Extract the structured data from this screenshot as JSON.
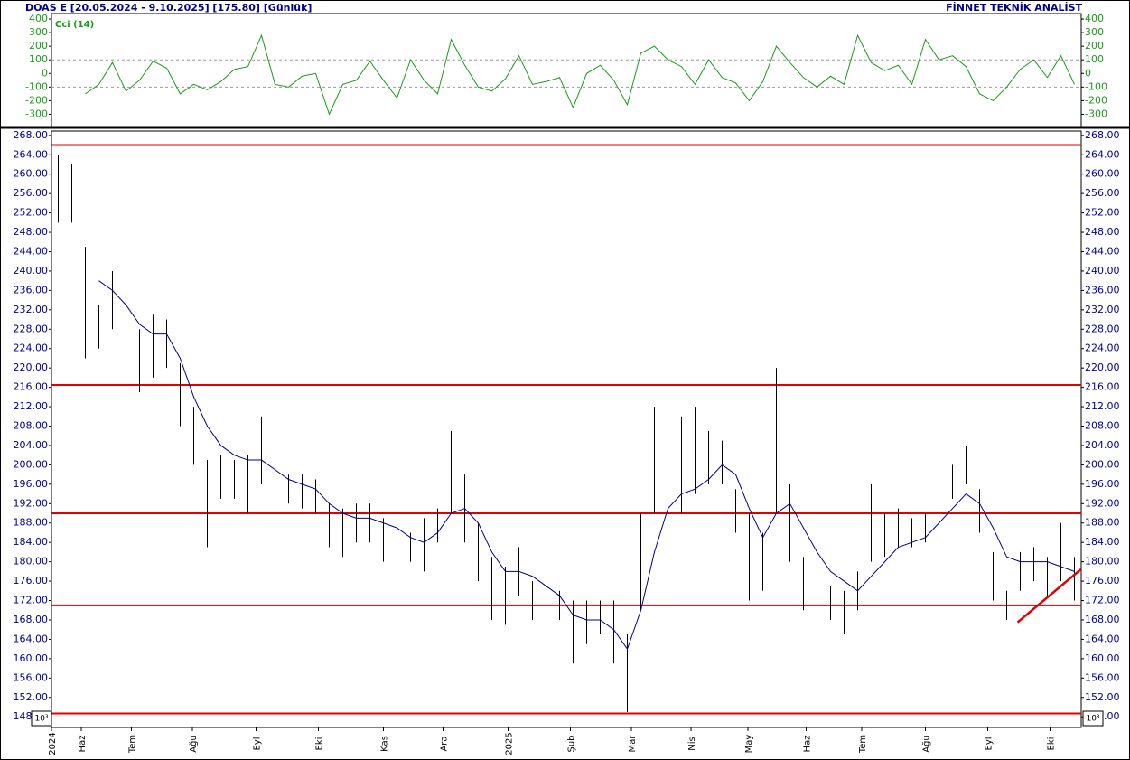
{
  "chart_data": [
    {
      "type": "line",
      "title": "DOAS  E  [20.05.2024 - 9.10.2025]  [175.80]  [Günlük]",
      "brand": "FİNNET TEKNİK ANALİST",
      "series": [
        {
          "name": "Cci (14)",
          "color": "#1a9a1a",
          "values": [
            null,
            null,
            -150,
            -80,
            80,
            -130,
            -50,
            90,
            40,
            -150,
            -80,
            -120,
            -60,
            30,
            50,
            280,
            -80,
            -100,
            -20,
            0,
            -300,
            -80,
            -50,
            90,
            -50,
            -180,
            100,
            -50,
            -150,
            250,
            60,
            -100,
            -130,
            -40,
            130,
            -80,
            -60,
            -30,
            -250,
            0,
            60,
            -50,
            -230,
            150,
            200,
            100,
            50,
            -80,
            100,
            -30,
            -70,
            -200,
            -60,
            200,
            80,
            -30,
            -100,
            -20,
            -80,
            280,
            80,
            20,
            60,
            -80,
            250,
            100,
            130,
            50,
            -150,
            -200,
            -100,
            30,
            100,
            -30,
            130,
            -80
          ]
        }
      ],
      "ylim": [
        -390,
        440
      ],
      "yticks": [
        400,
        300,
        200,
        100,
        0,
        -100,
        -200,
        -300
      ],
      "ref_lines": [
        100,
        -100
      ],
      "xlim": [
        0,
        76
      ]
    },
    {
      "type": "hlc",
      "color": "#000000",
      "high": [
        264,
        262,
        245,
        233,
        240,
        238,
        228,
        231,
        230,
        221,
        212,
        201,
        202,
        201,
        202,
        210,
        199,
        198,
        198,
        197,
        192,
        191,
        192,
        192,
        189,
        188,
        186,
        189,
        191,
        207,
        198,
        188,
        181,
        179,
        183,
        176,
        176,
        174,
        172,
        172,
        172,
        172,
        165,
        190,
        212,
        216,
        210,
        212,
        207,
        205,
        195,
        190,
        186,
        220,
        196,
        181,
        183,
        175,
        174,
        178,
        196,
        190,
        191,
        189,
        190,
        198,
        200,
        204,
        195,
        182,
        174,
        182,
        183,
        181,
        188,
        181
      ],
      "low": [
        250,
        250,
        222,
        224,
        228,
        222,
        215,
        218,
        220,
        208,
        200,
        183,
        193,
        193,
        190,
        196,
        190,
        192,
        191,
        190,
        183,
        181,
        184,
        184,
        180,
        182,
        180,
        178,
        184,
        190,
        184,
        176,
        168,
        167,
        173,
        168,
        169,
        168,
        159,
        163,
        165,
        159,
        149,
        170,
        190,
        198,
        190,
        194,
        196,
        196,
        186,
        172,
        174,
        190,
        180,
        170,
        174,
        168,
        165,
        170,
        180,
        181,
        183,
        183,
        184,
        189,
        193,
        196,
        186,
        172,
        168,
        174,
        176,
        173,
        176,
        172
      ],
      "overlays": [
        {
          "color": "#00008b",
          "values": [
            null,
            null,
            null,
            238,
            236,
            233,
            229,
            227,
            227,
            222,
            214,
            208,
            204,
            202,
            201,
            201,
            199,
            197,
            196,
            195,
            192,
            190,
            189,
            189,
            188,
            187,
            185,
            184,
            186,
            190,
            191,
            188,
            182,
            178,
            178,
            177,
            175,
            173,
            169,
            168,
            168,
            166,
            162,
            170,
            182,
            191,
            194,
            195,
            197,
            200,
            198,
            191,
            185,
            190,
            192,
            187,
            182,
            178,
            176,
            174,
            177,
            180,
            183,
            184,
            185,
            188,
            191,
            194,
            192,
            187,
            181,
            180,
            180,
            180,
            179,
            178
          ]
        }
      ],
      "levels": [
        266,
        216.5,
        190,
        171,
        148.7
      ],
      "level_color": "#e00000",
      "trend": {
        "x": [
          71.3,
          76
        ],
        "y": [
          167.5,
          178.5
        ],
        "color": "#e00000"
      },
      "scale_label": "10³",
      "ylim": [
        145.8,
        268.9
      ],
      "yticks": [
        {
          "value": 268,
          "label": "268.00"
        },
        {
          "value": 264,
          "label": "264.00"
        },
        {
          "value": 260,
          "label": "260.00"
        },
        {
          "value": 256,
          "label": "256.00"
        },
        {
          "value": 252,
          "label": "252.00"
        },
        {
          "value": 248,
          "label": "248.00"
        },
        {
          "value": 244,
          "label": "244.00"
        },
        {
          "value": 240,
          "label": "240.00"
        },
        {
          "value": 236,
          "label": "236.00"
        },
        {
          "value": 232,
          "label": "232.00"
        },
        {
          "value": 228,
          "label": "228.00"
        },
        {
          "value": 224,
          "label": "224.00"
        },
        {
          "value": 220,
          "label": "220.00"
        },
        {
          "value": 216,
          "label": "216.00"
        },
        {
          "value": 212,
          "label": "212.00"
        },
        {
          "value": 208,
          "label": "208.00"
        },
        {
          "value": 204,
          "label": "204.00"
        },
        {
          "value": 200,
          "label": "200.00"
        },
        {
          "value": 196,
          "label": "196.00"
        },
        {
          "value": 192,
          "label": "192.00"
        },
        {
          "value": 188,
          "label": "188.00"
        },
        {
          "value": 184,
          "label": "184.00"
        },
        {
          "value": 180,
          "label": "180.00"
        },
        {
          "value": 176,
          "label": "176.00"
        },
        {
          "value": 172,
          "label": "172.00"
        },
        {
          "value": 168,
          "label": "168.00"
        },
        {
          "value": 164,
          "label": "164.00"
        },
        {
          "value": 160,
          "label": "160.00"
        },
        {
          "value": 156,
          "label": "156.00"
        },
        {
          "value": 152,
          "label": "152.00"
        },
        {
          "value": 148,
          "label": "148.00"
        }
      ],
      "xlim": [
        0,
        76
      ],
      "xticks": [
        {
          "value": 0,
          "label": "2024"
        },
        {
          "value": 2.2,
          "label": "Haz"
        },
        {
          "value": 5.9,
          "label": "Tem"
        },
        {
          "value": 10.4,
          "label": "Ağu"
        },
        {
          "value": 15.1,
          "label": "Eyl"
        },
        {
          "value": 19.7,
          "label": "Eki"
        },
        {
          "value": 24.5,
          "label": "Kas"
        },
        {
          "value": 28.9,
          "label": "Ara"
        },
        {
          "value": 33.7,
          "label": "2025"
        },
        {
          "value": 38.3,
          "label": "Şub"
        },
        {
          "value": 42.8,
          "label": "Mar"
        },
        {
          "value": 47.2,
          "label": "Nis"
        },
        {
          "value": 51.4,
          "label": "May"
        },
        {
          "value": 55.7,
          "label": "Haz"
        },
        {
          "value": 59.8,
          "label": "Tem"
        },
        {
          "value": 64.5,
          "label": "Ağu"
        },
        {
          "value": 69.1,
          "label": "Eyl"
        },
        {
          "value": 73.7,
          "label": "Eki"
        }
      ]
    }
  ]
}
